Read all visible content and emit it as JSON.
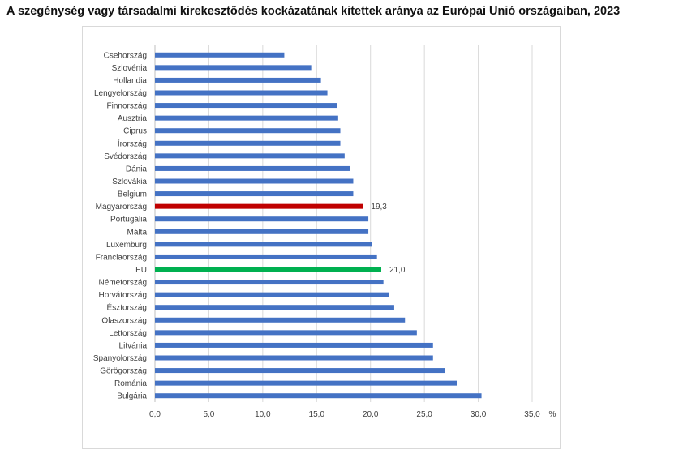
{
  "chart_data": {
    "type": "bar",
    "orientation": "horizontal",
    "title": "A szegénység vagy társadalmi kirekesztődés kockázatának kitettek aránya az Európai Unió országaiban, 2023",
    "unit_label": "%",
    "categories": [
      "Csehország",
      "Szlovénia",
      "Hollandia",
      "Lengyelország",
      "Finnország",
      "Ausztria",
      "Ciprus",
      "Írország",
      "Svédország",
      "Dánia",
      "Szlovákia",
      "Belgium",
      "Magyarország",
      "Portugália",
      "Málta",
      "Luxemburg",
      "Franciaország",
      "EU",
      "Németország",
      "Horvátország",
      "Észtország",
      "Olaszország",
      "Lettország",
      "Litvánia",
      "Spanyolország",
      "Görögország",
      "Románia",
      "Bulgária"
    ],
    "values": [
      12.0,
      14.5,
      15.4,
      16.0,
      16.9,
      17.0,
      17.2,
      17.2,
      17.6,
      18.1,
      18.4,
      18.4,
      19.3,
      19.8,
      19.8,
      20.1,
      20.6,
      21.0,
      21.2,
      21.7,
      22.2,
      23.2,
      24.3,
      25.8,
      25.8,
      26.9,
      28.0,
      30.3
    ],
    "highlight": {
      "Magyarország": "#c00000",
      "EU": "#00b050"
    },
    "default_color": "#4472c4",
    "data_labels": {
      "Magyarország": "19,3",
      "EU": "21,0"
    },
    "xlim": [
      0,
      35
    ],
    "ticks": [
      "0,0",
      "5,0",
      "10,0",
      "15,0",
      "20,0",
      "25,0",
      "30,0",
      "35,0"
    ],
    "grid": true
  }
}
